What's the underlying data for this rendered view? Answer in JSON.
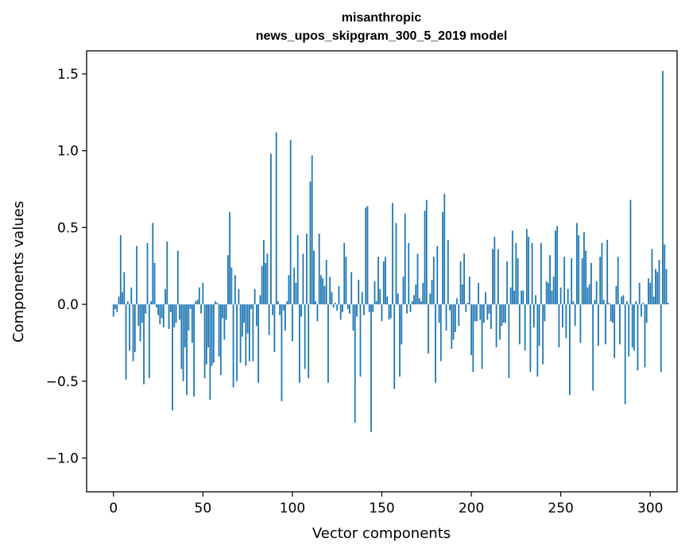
{
  "chart_data": {
    "type": "bar",
    "title_lines": [
      "misanthropic",
      "news_upos_skipgram_300_5_2019 model"
    ],
    "xlabel": "Vector components",
    "ylabel": "Components values",
    "x_ticks": [
      "0",
      "50",
      "100",
      "150",
      "200",
      "250",
      "300"
    ],
    "y_ticks": [
      "−1.0",
      "−0.5",
      "0.0",
      "0.5",
      "1.0",
      "1.5"
    ],
    "xlim": [
      -15,
      315
    ],
    "ylim": [
      -1.22,
      1.65
    ],
    "bar_color": "#1f77b4",
    "grid": false,
    "values": [
      -0.08,
      -0.03,
      -0.05,
      0.05,
      0.45,
      0.08,
      0.21,
      -0.49,
      0.02,
      -0.3,
      0.11,
      -0.37,
      -0.31,
      0.38,
      -0.14,
      -0.24,
      -0.12,
      -0.52,
      -0.06,
      0.4,
      -0.48,
      0.02,
      0.53,
      0.27,
      -0.02,
      -0.07,
      -0.13,
      -0.09,
      -0.15,
      0.1,
      0.41,
      -0.16,
      -0.05,
      -0.69,
      -0.15,
      -0.12,
      0.35,
      -0.1,
      -0.42,
      -0.5,
      -0.28,
      -0.59,
      -0.17,
      -0.03,
      -0.25,
      -0.6,
      0.02,
      0.03,
      0.11,
      -0.06,
      0.14,
      -0.48,
      -0.39,
      -0.28,
      -0.62,
      -0.4,
      -0.38,
      0.02,
      0.01,
      -0.34,
      -0.46,
      -0.09,
      -0.23,
      -0.1,
      0.32,
      0.6,
      0.24,
      -0.54,
      0.19,
      -0.5,
      0.1,
      -0.38,
      -0.21,
      -0.12,
      -0.4,
      -0.19,
      -0.37,
      -0.03,
      -0.37,
      0.1,
      -0.14,
      -0.51,
      0.06,
      0.25,
      0.42,
      0.27,
      0.33,
      -0.2,
      0.98,
      -0.07,
      -0.31,
      1.12,
      0.02,
      -0.07,
      -0.63,
      -0.04,
      -0.17,
      0.02,
      0.19,
      1.07,
      -0.24,
      0.24,
      0.14,
      0.45,
      -0.51,
      -0.08,
      0.33,
      -0.42,
      0.46,
      -0.48,
      0.8,
      0.97,
      0.35,
      0.02,
      -0.11,
      0.46,
      0.19,
      0.17,
      0.12,
      0.29,
      -0.51,
      0.18,
      0.08,
      -0.02,
      0.01,
      -0.04,
      0.12,
      -0.1,
      -0.05,
      0.4,
      0.31,
      -0.03,
      -0.06,
      0.21,
      -0.17,
      -0.77,
      -0.08,
      0.16,
      -0.47,
      0.08,
      -0.07,
      0.63,
      0.64,
      -0.05,
      -0.83,
      -0.05,
      0.15,
      0.02,
      0.31,
      0.1,
      -0.11,
      0.28,
      0.31,
      0.05,
      -0.1,
      -0.09,
      0.66,
      -0.55,
      0.53,
      0.07,
      -0.47,
      -0.26,
      0.18,
      0.59,
      -0.06,
      0.4,
      -0.05,
      0.02,
      0.06,
      0.13,
      0.33,
      0.04,
      0.02,
      0.14,
      0.61,
      0.68,
      -0.32,
      0.07,
      0.16,
      0.31,
      -0.51,
      0.38,
      -0.12,
      -0.37,
      0.6,
      0.72,
      -0.17,
      0.42,
      -0.04,
      -0.29,
      -0.23,
      -0.18,
      0.04,
      -0.14,
      0.28,
      0.13,
      0.33,
      -0.05,
      0.01,
      0.18,
      -0.33,
      -0.44,
      -0.11,
      -0.11,
      0.14,
      -0.1,
      -0.42,
      -0.12,
      0.08,
      -0.1,
      -0.06,
      -0.16,
      0.36,
      0.44,
      -0.28,
      0.36,
      -0.23,
      -0.14,
      -0.12,
      -0.12,
      0.28,
      -0.48,
      0.11,
      0.48,
      0.09,
      0.4,
      0.3,
      -0.26,
      0.09,
      0.09,
      -0.3,
      0.49,
      0.44,
      -0.44,
      0.4,
      -0.15,
      0.06,
      -0.47,
      -0.27,
      0.4,
      -0.39,
      -0.11,
      0.15,
      0.14,
      0.32,
      0.09,
      0.18,
      0.48,
      0.51,
      -0.28,
      0.11,
      -0.15,
      0.31,
      -0.22,
      0.1,
      -0.59,
      0.3,
      0.02,
      -0.14,
      0.53,
      0.45,
      -0.25,
      0.3,
      0.47,
      0.35,
      0.11,
      0.13,
      0.27,
      -0.56,
      0.03,
      0.15,
      -0.27,
      0.31,
      0.4,
      0.03,
      -0.26,
      0.42,
      0.01,
      -0.11,
      -0.12,
      -0.35,
      0.12,
      0.31,
      -0.26,
      0.05,
      0.06,
      -0.65,
      0.02,
      -0.34,
      0.68,
      -0.28,
      -0.3,
      0.02,
      -0.43,
      0.14,
      -0.08,
      0.01,
      -0.41,
      -0.12,
      0.17,
      0.14,
      0.36,
      0.05,
      0.23,
      0.21,
      0.29,
      -0.44,
      1.52,
      0.39,
      0.23,
      0.01
    ]
  }
}
